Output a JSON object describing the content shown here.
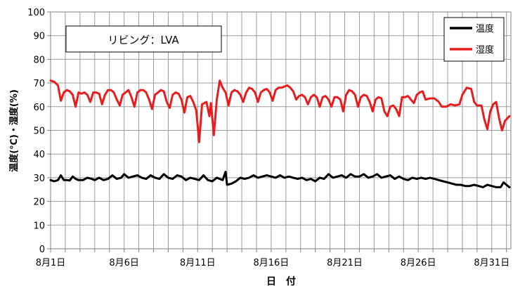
{
  "chart_data": {
    "type": "line",
    "title": "リビング：LVA",
    "xlabel": "日　付",
    "ylabel": "温度(℃)・湿度(%)",
    "ylim": [
      0,
      100
    ],
    "yticks": [
      0,
      10,
      20,
      30,
      40,
      50,
      60,
      70,
      80,
      90,
      100
    ],
    "xlim": [
      1,
      32
    ],
    "xticks": [
      {
        "day": 1,
        "label": "8月1日"
      },
      {
        "day": 6,
        "label": "8月6日"
      },
      {
        "day": 11,
        "label": "8月11日"
      },
      {
        "day": 16,
        "label": "8月16日"
      },
      {
        "day": 21,
        "label": "8月21日"
      },
      {
        "day": 26,
        "label": "8月26日"
      },
      {
        "day": 31,
        "label": "8月31日"
      }
    ],
    "grid": true,
    "legend_position": "top-right",
    "series": [
      {
        "name": "温度",
        "color": "#000000",
        "points": [
          [
            1.0,
            29
          ],
          [
            1.25,
            28.5
          ],
          [
            1.5,
            29
          ],
          [
            1.7,
            31
          ],
          [
            1.9,
            29
          ],
          [
            2.1,
            29
          ],
          [
            2.3,
            28.8
          ],
          [
            2.5,
            30.5
          ],
          [
            2.7,
            29.5
          ],
          [
            2.9,
            29
          ],
          [
            3.2,
            29
          ],
          [
            3.5,
            30
          ],
          [
            3.8,
            29.5
          ],
          [
            4.0,
            29
          ],
          [
            4.3,
            30
          ],
          [
            4.6,
            29
          ],
          [
            4.9,
            29.5
          ],
          [
            5.2,
            31
          ],
          [
            5.5,
            29.5
          ],
          [
            5.8,
            30
          ],
          [
            6.0,
            31.5
          ],
          [
            6.3,
            30
          ],
          [
            6.6,
            30.5
          ],
          [
            6.9,
            31
          ],
          [
            7.2,
            30
          ],
          [
            7.5,
            29.5
          ],
          [
            7.8,
            31
          ],
          [
            8.1,
            30
          ],
          [
            8.4,
            29.5
          ],
          [
            8.7,
            31.5
          ],
          [
            9.0,
            30
          ],
          [
            9.3,
            29.5
          ],
          [
            9.6,
            31
          ],
          [
            9.9,
            30.5
          ],
          [
            10.2,
            29
          ],
          [
            10.5,
            30
          ],
          [
            10.8,
            29.5
          ],
          [
            11.1,
            29
          ],
          [
            11.4,
            31
          ],
          [
            11.7,
            29
          ],
          [
            12.0,
            28.5
          ],
          [
            12.3,
            30
          ],
          [
            12.5,
            29.5
          ],
          [
            12.7,
            29
          ],
          [
            12.9,
            32.5
          ],
          [
            13.0,
            27
          ],
          [
            13.3,
            27.5
          ],
          [
            13.6,
            28.5
          ],
          [
            13.9,
            30
          ],
          [
            14.2,
            29.5
          ],
          [
            14.5,
            30
          ],
          [
            14.8,
            31
          ],
          [
            15.1,
            30
          ],
          [
            15.4,
            30.5
          ],
          [
            15.7,
            31
          ],
          [
            16.0,
            30.5
          ],
          [
            16.3,
            30
          ],
          [
            16.6,
            31
          ],
          [
            16.9,
            30
          ],
          [
            17.2,
            30.5
          ],
          [
            17.5,
            30
          ],
          [
            17.8,
            29.5
          ],
          [
            18.1,
            30
          ],
          [
            18.4,
            29
          ],
          [
            18.7,
            29.5
          ],
          [
            19.0,
            28.5
          ],
          [
            19.3,
            30
          ],
          [
            19.6,
            29.5
          ],
          [
            19.9,
            31.5
          ],
          [
            20.2,
            30
          ],
          [
            20.5,
            30.5
          ],
          [
            20.8,
            31
          ],
          [
            21.1,
            30
          ],
          [
            21.4,
            31.5
          ],
          [
            21.7,
            30.5
          ],
          [
            22.0,
            30.5
          ],
          [
            22.3,
            31.5
          ],
          [
            22.6,
            30
          ],
          [
            22.9,
            30.5
          ],
          [
            23.2,
            31.5
          ],
          [
            23.5,
            30
          ],
          [
            23.8,
            30.5
          ],
          [
            24.1,
            31
          ],
          [
            24.4,
            29.5
          ],
          [
            24.7,
            30.5
          ],
          [
            25.0,
            29.5
          ],
          [
            25.3,
            29
          ],
          [
            25.6,
            30
          ],
          [
            25.9,
            29.5
          ],
          [
            26.2,
            30
          ],
          [
            26.5,
            29.5
          ],
          [
            26.8,
            30
          ],
          [
            27.1,
            29.5
          ],
          [
            27.4,
            29
          ],
          [
            27.7,
            28.5
          ],
          [
            28.0,
            28
          ],
          [
            28.3,
            27.5
          ],
          [
            28.6,
            27
          ],
          [
            28.9,
            27
          ],
          [
            29.2,
            26.5
          ],
          [
            29.5,
            26.5
          ],
          [
            29.8,
            27
          ],
          [
            30.1,
            26.5
          ],
          [
            30.4,
            26
          ],
          [
            30.7,
            27
          ],
          [
            31.0,
            26.5
          ],
          [
            31.3,
            26
          ],
          [
            31.6,
            26
          ],
          [
            31.8,
            28
          ],
          [
            32.0,
            27
          ],
          [
            32.2,
            26
          ]
        ]
      },
      {
        "name": "湿度",
        "color": "#e81c1c",
        "points": [
          [
            1.0,
            71
          ],
          [
            1.25,
            70.5
          ],
          [
            1.5,
            69
          ],
          [
            1.7,
            62.5
          ],
          [
            1.9,
            66
          ],
          [
            2.1,
            67
          ],
          [
            2.3,
            66.5
          ],
          [
            2.5,
            65
          ],
          [
            2.7,
            60
          ],
          [
            2.9,
            66
          ],
          [
            3.1,
            65.5
          ],
          [
            3.3,
            66
          ],
          [
            3.5,
            65
          ],
          [
            3.7,
            62
          ],
          [
            3.9,
            66
          ],
          [
            4.1,
            66
          ],
          [
            4.3,
            65.5
          ],
          [
            4.5,
            61
          ],
          [
            4.7,
            65
          ],
          [
            4.9,
            67
          ],
          [
            5.1,
            67
          ],
          [
            5.3,
            66
          ],
          [
            5.5,
            63
          ],
          [
            5.7,
            60.5
          ],
          [
            5.9,
            65
          ],
          [
            6.1,
            66
          ],
          [
            6.3,
            67
          ],
          [
            6.5,
            64
          ],
          [
            6.7,
            60
          ],
          [
            6.9,
            66
          ],
          [
            7.1,
            67
          ],
          [
            7.3,
            67
          ],
          [
            7.5,
            66
          ],
          [
            7.7,
            63
          ],
          [
            7.9,
            59
          ],
          [
            8.1,
            65
          ],
          [
            8.3,
            66
          ],
          [
            8.5,
            67
          ],
          [
            8.7,
            66.5
          ],
          [
            8.9,
            62
          ],
          [
            9.1,
            59.5
          ],
          [
            9.3,
            65
          ],
          [
            9.5,
            66
          ],
          [
            9.7,
            65.5
          ],
          [
            9.9,
            63
          ],
          [
            10.1,
            57.5
          ],
          [
            10.3,
            64
          ],
          [
            10.5,
            64.5
          ],
          [
            10.7,
            62
          ],
          [
            10.9,
            58.5
          ],
          [
            11.0,
            52
          ],
          [
            11.1,
            45
          ],
          [
            11.3,
            61
          ],
          [
            11.6,
            62
          ],
          [
            11.8,
            56
          ],
          [
            11.9,
            61.5
          ],
          [
            12.1,
            48
          ],
          [
            12.3,
            63
          ],
          [
            12.5,
            71
          ],
          [
            12.7,
            68
          ],
          [
            12.9,
            66
          ],
          [
            13.1,
            60.5
          ],
          [
            13.3,
            66
          ],
          [
            13.5,
            67
          ],
          [
            13.7,
            66.5
          ],
          [
            13.9,
            65
          ],
          [
            14.1,
            62
          ],
          [
            14.3,
            66
          ],
          [
            14.5,
            68
          ],
          [
            14.7,
            67.5
          ],
          [
            14.9,
            66
          ],
          [
            15.1,
            62
          ],
          [
            15.3,
            66
          ],
          [
            15.5,
            67
          ],
          [
            15.7,
            67.5
          ],
          [
            15.9,
            66
          ],
          [
            16.1,
            62.5
          ],
          [
            16.3,
            67
          ],
          [
            16.5,
            68
          ],
          [
            16.7,
            68
          ],
          [
            16.9,
            68.5
          ],
          [
            17.1,
            69
          ],
          [
            17.3,
            68
          ],
          [
            17.5,
            66.5
          ],
          [
            17.7,
            63
          ],
          [
            17.9,
            64.5
          ],
          [
            18.1,
            65
          ],
          [
            18.3,
            64
          ],
          [
            18.5,
            61
          ],
          [
            18.7,
            64
          ],
          [
            18.9,
            65
          ],
          [
            19.1,
            64
          ],
          [
            19.3,
            60
          ],
          [
            19.5,
            64
          ],
          [
            19.7,
            64.5
          ],
          [
            19.9,
            63
          ],
          [
            20.1,
            60
          ],
          [
            20.3,
            64
          ],
          [
            20.5,
            64
          ],
          [
            20.7,
            63
          ],
          [
            20.9,
            58
          ],
          [
            21.1,
            65
          ],
          [
            21.3,
            67
          ],
          [
            21.5,
            66.5
          ],
          [
            21.7,
            65
          ],
          [
            21.9,
            60
          ],
          [
            22.1,
            64
          ],
          [
            22.3,
            65
          ],
          [
            22.5,
            64.5
          ],
          [
            22.7,
            62
          ],
          [
            22.9,
            58
          ],
          [
            23.1,
            63
          ],
          [
            23.3,
            64
          ],
          [
            23.5,
            63.5
          ],
          [
            23.7,
            58
          ],
          [
            23.9,
            56
          ],
          [
            24.1,
            60
          ],
          [
            24.3,
            60.5
          ],
          [
            24.5,
            59
          ],
          [
            24.7,
            56
          ],
          [
            24.9,
            64
          ],
          [
            25.1,
            64
          ],
          [
            25.3,
            64.5
          ],
          [
            25.5,
            63
          ],
          [
            25.7,
            61.5
          ],
          [
            25.9,
            65
          ],
          [
            26.1,
            66
          ],
          [
            26.3,
            66.5
          ],
          [
            26.5,
            63
          ],
          [
            26.8,
            63.5
          ],
          [
            27.1,
            63.5
          ],
          [
            27.4,
            62
          ],
          [
            27.6,
            60
          ],
          [
            27.9,
            60
          ],
          [
            28.2,
            61
          ],
          [
            28.5,
            60.5
          ],
          [
            28.8,
            61
          ],
          [
            29.0,
            65
          ],
          [
            29.3,
            68
          ],
          [
            29.6,
            67.5
          ],
          [
            29.8,
            62
          ],
          [
            30.0,
            60.5
          ],
          [
            30.3,
            60.5
          ],
          [
            30.5,
            54.5
          ],
          [
            30.7,
            50.5
          ],
          [
            30.9,
            58
          ],
          [
            31.1,
            61
          ],
          [
            31.3,
            62
          ],
          [
            31.5,
            55
          ],
          [
            31.7,
            50
          ],
          [
            31.9,
            54
          ],
          [
            32.2,
            56
          ]
        ]
      }
    ]
  }
}
